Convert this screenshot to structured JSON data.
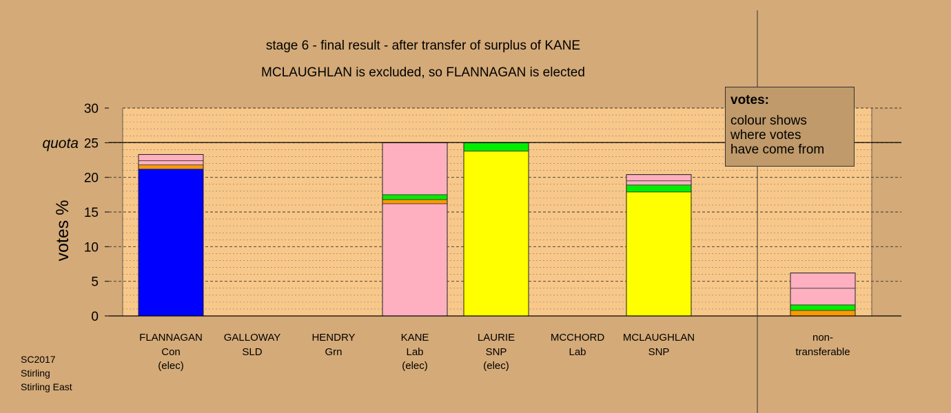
{
  "title_line1": "stage 6 - final result - after transfer of surplus of KANE",
  "title_line2": "MCLAUGHLAN is excluded, so FLANNAGAN is elected",
  "legend": {
    "heading": "votes:",
    "line1": "colour shows",
    "line2": "where votes",
    "line3": "have come from"
  },
  "footer": {
    "line1": "SC2017",
    "line2": "Stirling",
    "line3": "Stirling East"
  },
  "colors": {
    "background": "#d4aa78",
    "plot_area": "#f8c88a",
    "Con": "#0000ff",
    "SNP": "#ffff00",
    "Lab": "#ffb0c0",
    "Green": "#00ee00",
    "SLD": "#ff9900"
  },
  "chart_data": {
    "type": "bar",
    "stacked": true,
    "ylabel": "votes %",
    "ylim": [
      0,
      30
    ],
    "yticks": [
      0,
      5,
      10,
      15,
      20,
      25,
      30
    ],
    "quota": {
      "value": 25,
      "label": "quota"
    },
    "grid": true,
    "categories": [
      {
        "name": "FLANNAGAN",
        "party": "Con",
        "status": "(elec)",
        "segments": [
          {
            "from": "Con",
            "color": "#0000ff",
            "value": 21.2
          },
          {
            "from": "SLD",
            "color": "#ff9900",
            "value": 0.6
          },
          {
            "from": "Lab",
            "color": "#ffb0c0",
            "value": 0.6
          },
          {
            "from": "Lab",
            "color": "#ffb0c0",
            "value": 0.9
          }
        ]
      },
      {
        "name": "GALLOWAY",
        "party": "SLD",
        "status": "",
        "segments": []
      },
      {
        "name": "HENDRY",
        "party": "Grn",
        "status": "",
        "segments": []
      },
      {
        "name": "KANE",
        "party": "Lab",
        "status": "(elec)",
        "segments": [
          {
            "from": "Lab",
            "color": "#ffb0c0",
            "value": 16.2
          },
          {
            "from": "SLD",
            "color": "#ff9900",
            "value": 0.6
          },
          {
            "from": "Green",
            "color": "#00ee00",
            "value": 0.7
          },
          {
            "from": "Lab",
            "color": "#ffb0c0",
            "value": 7.5
          }
        ]
      },
      {
        "name": "LAURIE",
        "party": "SNP",
        "status": "(elec)",
        "segments": [
          {
            "from": "SNP",
            "color": "#ffff00",
            "value": 23.8
          },
          {
            "from": "Green",
            "color": "#00ee00",
            "value": 1.2
          }
        ]
      },
      {
        "name": "MCCHORD",
        "party": "Lab",
        "status": "",
        "segments": []
      },
      {
        "name": "MCLAUGHLAN",
        "party": "SNP",
        "status": "",
        "segments": [
          {
            "from": "SNP",
            "color": "#ffff00",
            "value": 17.9
          },
          {
            "from": "Green",
            "color": "#00ee00",
            "value": 1.0
          },
          {
            "from": "Lab",
            "color": "#ffb0c0",
            "value": 0.6
          },
          {
            "from": "Lab",
            "color": "#ffb0c0",
            "value": 0.9
          }
        ]
      }
    ],
    "nontransferable": {
      "label_line1": "non-",
      "label_line2": "transferable",
      "segments": [
        {
          "from": "SLD",
          "color": "#ff9900",
          "value": 0.8
        },
        {
          "from": "Green",
          "color": "#00ee00",
          "value": 0.8
        },
        {
          "from": "Lab",
          "color": "#ffb0c0",
          "value": 2.4
        },
        {
          "from": "Lab",
          "color": "#ffb0c0",
          "value": 2.2
        }
      ]
    }
  }
}
